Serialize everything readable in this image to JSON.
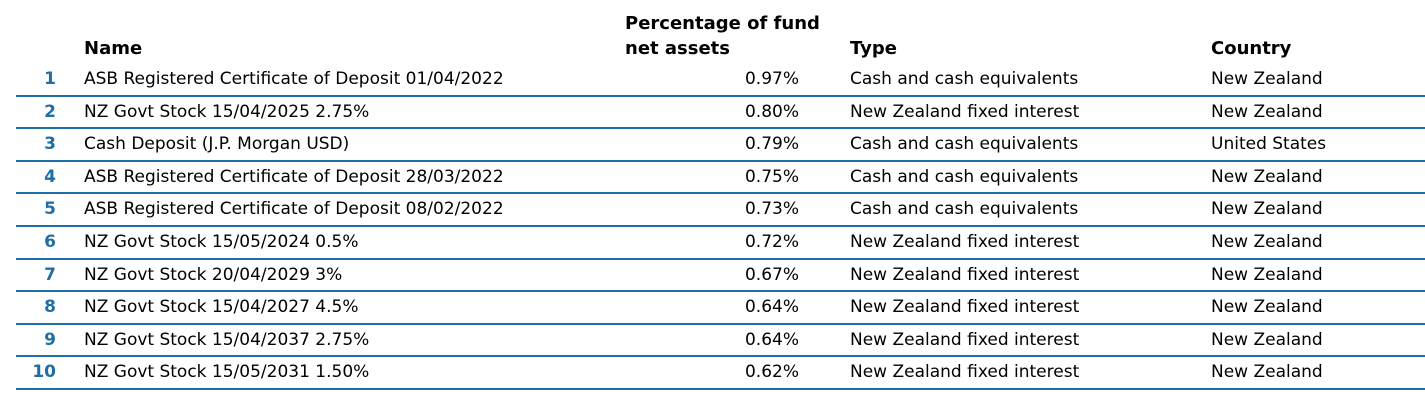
{
  "headers": {
    "name": "Name",
    "percentage": "Percentage of fund net assets",
    "type": "Type",
    "country": "Country"
  },
  "colors": {
    "accent": "#1f6fa6"
  },
  "rows": [
    {
      "num": "1",
      "name": "ASB Registered Certificate of Deposit 01/04/2022",
      "pct": "0.97%",
      "type": "Cash and cash equivalents",
      "country": "New Zealand"
    },
    {
      "num": "2",
      "name": "NZ Govt Stock 15/04/2025 2.75%",
      "pct": "0.80%",
      "type": "New Zealand fixed interest",
      "country": "New Zealand"
    },
    {
      "num": "3",
      "name": "Cash Deposit (J.P. Morgan USD)",
      "pct": "0.79%",
      "type": "Cash and cash equivalents",
      "country": "United States"
    },
    {
      "num": "4",
      "name": "ASB Registered Certificate of Deposit 28/03/2022",
      "pct": "0.75%",
      "type": "Cash and cash equivalents",
      "country": "New Zealand"
    },
    {
      "num": "5",
      "name": "ASB Registered Certificate of Deposit 08/02/2022",
      "pct": "0.73%",
      "type": "Cash and cash equivalents",
      "country": "New Zealand"
    },
    {
      "num": "6",
      "name": "NZ Govt Stock 15/05/2024 0.5%",
      "pct": "0.72%",
      "type": "New Zealand fixed interest",
      "country": "New Zealand"
    },
    {
      "num": "7",
      "name": "NZ Govt Stock 20/04/2029 3%",
      "pct": "0.67%",
      "type": "New Zealand fixed interest",
      "country": "New Zealand"
    },
    {
      "num": "8",
      "name": "NZ Govt Stock 15/04/2027 4.5%",
      "pct": "0.64%",
      "type": "New Zealand fixed interest",
      "country": "New Zealand"
    },
    {
      "num": "9",
      "name": "NZ Govt Stock 15/04/2037 2.75%",
      "pct": "0.64%",
      "type": "New Zealand fixed interest",
      "country": "New Zealand"
    },
    {
      "num": "10",
      "name": "NZ Govt Stock 15/05/2031 1.50%",
      "pct": "0.62%",
      "type": "New Zealand fixed interest",
      "country": "New Zealand"
    }
  ]
}
